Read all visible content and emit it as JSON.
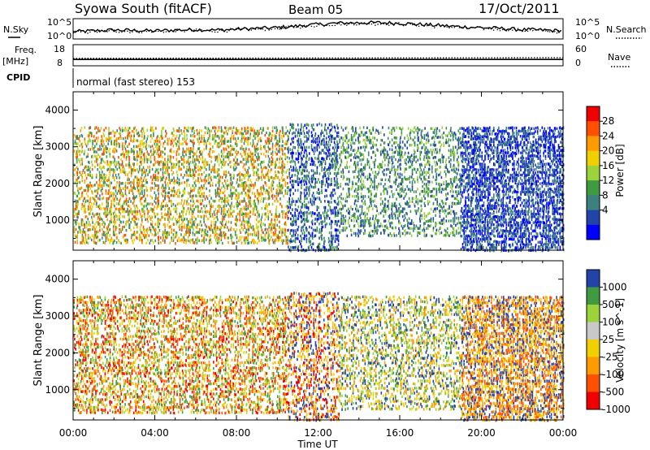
{
  "header": {
    "station": "Syowa South (fitACF)",
    "beam": "Beam 05",
    "date": "17/Oct/2011"
  },
  "labels": {
    "nsky": "N.Sky",
    "nsearch": "N.Search",
    "freq": "Freq.",
    "mhz": "[MHz]",
    "nave": "Nave",
    "cpid": "CPID",
    "cpid_value": "normal (fast stereo) 153",
    "xlabel": "Time UT",
    "ylabel": "Slant Range [km]"
  },
  "noise_axis": {
    "left_ticks": [
      "10^5",
      "10^0"
    ],
    "right_ticks": [
      "10^5",
      "10^0"
    ]
  },
  "freq_axis": {
    "left_ticks": [
      "18",
      "8"
    ],
    "right_ticks": [
      "60",
      "0"
    ]
  },
  "x_ticks": [
    "00:00",
    "04:00",
    "08:00",
    "12:00",
    "16:00",
    "20:00",
    "00:00"
  ],
  "y_ticks": [
    "1000",
    "2000",
    "3000",
    "4000"
  ],
  "chart_data": [
    {
      "type": "line",
      "panel": "noise",
      "x": [
        0,
        1,
        2,
        3,
        4,
        5,
        6,
        7,
        8,
        9,
        10,
        11,
        12,
        13,
        14,
        15,
        16,
        17,
        18,
        19,
        20,
        21,
        22,
        23,
        24
      ],
      "series": [
        {
          "name": "N.Sky",
          "style": "solid",
          "values": [
            1.8,
            2.0,
            2.2,
            2.1,
            2.0,
            2.2,
            2.3,
            2.2,
            2.4,
            2.6,
            2.8,
            3.2,
            3.6,
            3.9,
            4.0,
            4.0,
            3.9,
            3.6,
            3.3,
            3.0,
            2.8,
            2.6,
            2.3,
            2.2,
            2.0
          ]
        },
        {
          "name": "N.Search",
          "style": "dotted",
          "values": [
            1.6,
            1.8,
            2.0,
            1.9,
            1.8,
            2.0,
            2.1,
            2.0,
            2.2,
            2.4,
            2.6,
            3.0,
            3.4,
            3.7,
            3.8,
            3.8,
            3.7,
            3.4,
            3.1,
            2.8,
            2.6,
            2.4,
            2.1,
            2.0,
            1.8
          ]
        }
      ],
      "ylim": [
        0,
        5
      ],
      "xlim": [
        0,
        24
      ]
    },
    {
      "type": "line",
      "panel": "frequency",
      "x": [
        0,
        24
      ],
      "series": [
        {
          "name": "Freq.",
          "style": "solid",
          "values": [
            11,
            11
          ]
        },
        {
          "name": "Nave",
          "style": "dotted",
          "values": [
            21,
            23
          ]
        }
      ],
      "ylim_freq": [
        8,
        18
      ],
      "ylim_nave": [
        0,
        60
      ],
      "xlim": [
        0,
        24
      ]
    },
    {
      "type": "scatter",
      "panel": "power",
      "title": "Power [dB]",
      "xlim": [
        0,
        24
      ],
      "ylim": [
        180,
        4500
      ],
      "colorbar": {
        "label": "Power [dB]",
        "ticks": [
          "28",
          "24",
          "20",
          "16",
          "12",
          "8",
          "4"
        ],
        "colors": [
          "#f00000",
          "#ff5000",
          "#ff9a00",
          "#f0d000",
          "#9cd23a",
          "#3f9a40",
          "#3c8080",
          "#2244a8",
          "#0000ff"
        ]
      },
      "regions": [
        {
          "x": [
            0,
            10.5
          ],
          "y": [
            400,
            3600
          ],
          "density": 0.28,
          "colors": [
            "#ff9a00",
            "#f0d000",
            "#9cd23a",
            "#3f9a40",
            "#3c8080",
            "#ff5000"
          ]
        },
        {
          "x": [
            10.5,
            13
          ],
          "y": [
            200,
            3700
          ],
          "density": 0.3,
          "colors": [
            "#2244a8",
            "#0000ff",
            "#3c8080",
            "#3f9a40"
          ]
        },
        {
          "x": [
            13,
            19
          ],
          "y": [
            600,
            3600
          ],
          "density": 0.22,
          "colors": [
            "#3f9a40",
            "#3c8080",
            "#9cd23a",
            "#2244a8"
          ]
        },
        {
          "x": [
            19,
            24
          ],
          "y": [
            200,
            3600
          ],
          "density": 0.45,
          "colors": [
            "#0000ff",
            "#2244a8",
            "#3c8080"
          ]
        }
      ]
    },
    {
      "type": "scatter",
      "panel": "velocity",
      "title": "Velocity [m s^-1]",
      "xlim": [
        0,
        24
      ],
      "ylim": [
        180,
        4500
      ],
      "colorbar": {
        "label": "Velocity [m s^-1]",
        "ticks": [
          "1000",
          "500",
          "100",
          "25",
          "-25",
          "-100",
          "-500",
          "-1000"
        ],
        "colors": [
          "#2244a8",
          "#3f9a40",
          "#9cd23a",
          "#c8c8c8",
          "#f0d000",
          "#ff9a00",
          "#ff5000",
          "#f00000"
        ]
      },
      "regions": [
        {
          "x": [
            0,
            10.5
          ],
          "y": [
            400,
            3600
          ],
          "density": 0.3,
          "colors": [
            "#f0d000",
            "#ff9a00",
            "#ff5000",
            "#9cd23a",
            "#3f9a40",
            "#f00000"
          ]
        },
        {
          "x": [
            10.5,
            13
          ],
          "y": [
            200,
            3700
          ],
          "density": 0.3,
          "colors": [
            "#ff9a00",
            "#f00000",
            "#2244a8",
            "#f0d000"
          ]
        },
        {
          "x": [
            13,
            19
          ],
          "y": [
            500,
            3600
          ],
          "density": 0.24,
          "colors": [
            "#2244a8",
            "#ff9a00",
            "#f0d000",
            "#9cd23a",
            "#3f9a40"
          ]
        },
        {
          "x": [
            19,
            24
          ],
          "y": [
            200,
            3600
          ],
          "density": 0.45,
          "colors": [
            "#2244a8",
            "#ff9a00",
            "#f0d000",
            "#ff5000"
          ]
        }
      ]
    }
  ]
}
